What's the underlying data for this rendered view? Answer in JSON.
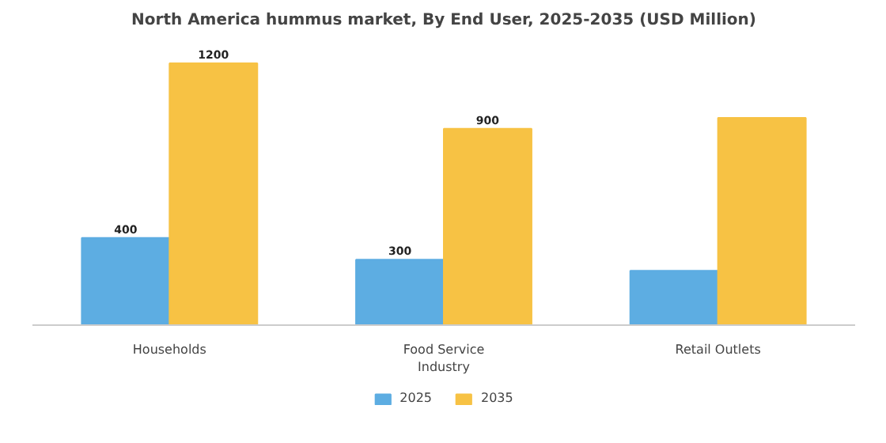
{
  "chart_data": {
    "type": "bar",
    "title": "North America hummus market, By End User, 2025-2035 (USD Million)",
    "categories": [
      "Households",
      "Food Service Industry",
      "Retail Outlets"
    ],
    "series": [
      {
        "name": "2025",
        "color": "#5dade2",
        "values": [
          400,
          300,
          250
        ],
        "value_labels": [
          "400",
          "300",
          null
        ]
      },
      {
        "name": "2035",
        "color": "#f7c244",
        "values": [
          1200,
          900,
          950
        ],
        "value_labels": [
          "1200",
          "900",
          null
        ]
      }
    ],
    "legend": "bottom",
    "grid": false
  }
}
